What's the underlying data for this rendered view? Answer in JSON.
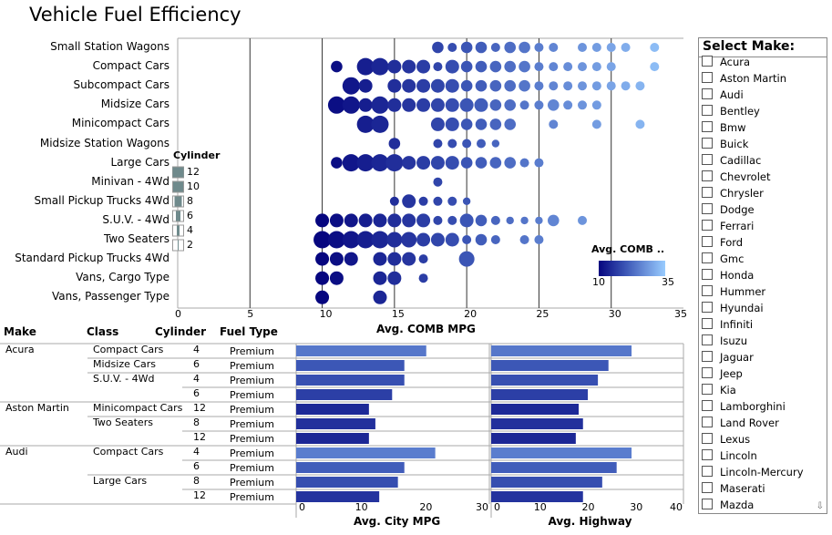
{
  "title": "Vehicle Fuel Efficiency",
  "colors": {
    "low": "#06067f",
    "mid": "#3b55b5",
    "high": "#99ccff",
    "grid": "#333333",
    "rule": "#aaaaaa"
  },
  "chart_data": [
    {
      "type": "scatter",
      "xlabel": "Avg. COMB MPG",
      "xlim": [
        0,
        35
      ],
      "xticks": [
        "0",
        "5",
        "10",
        "15",
        "20",
        "25",
        "30",
        "35"
      ],
      "grid": "vertical",
      "size_legend": {
        "title": "Cylinder",
        "entries": [
          "12",
          "10",
          "8",
          "6",
          "4",
          "2"
        ]
      },
      "color_legend": {
        "title": "Avg. COMB ..",
        "min": "10",
        "max": "35",
        "placement": "bottom-right"
      },
      "categories": [
        "Small Station Wagons",
        "Compact Cars",
        "Subcompact Cars",
        "Midsize Cars",
        "Minicompact Cars",
        "Midsize Station Wagons",
        "Large Cars",
        "Minivan - 4Wd",
        "Small Pickup Trucks 4Wd",
        "S.U.V. - 4Wd",
        "Two Seaters",
        "Standard Pickup Trucks 4Wd",
        "Vans, Cargo Type",
        "Vans, Passenger Type"
      ],
      "points_note_fields": [
        "mpg",
        "cylinder"
      ],
      "points": [
        [
          [
            18,
            6
          ],
          [
            19,
            4
          ],
          [
            20,
            6
          ],
          [
            21,
            6
          ],
          [
            22,
            4
          ],
          [
            23,
            6
          ],
          [
            24,
            6
          ],
          [
            25,
            4
          ],
          [
            26,
            4
          ],
          [
            28,
            4
          ],
          [
            29,
            4
          ],
          [
            30,
            4
          ],
          [
            31,
            4
          ],
          [
            33,
            4
          ]
        ],
        [
          [
            11,
            6
          ],
          [
            13,
            12
          ],
          [
            14,
            12
          ],
          [
            15,
            8
          ],
          [
            16,
            8
          ],
          [
            17,
            8
          ],
          [
            18,
            4
          ],
          [
            19,
            8
          ],
          [
            20,
            6
          ],
          [
            21,
            6
          ],
          [
            22,
            6
          ],
          [
            23,
            6
          ],
          [
            24,
            6
          ],
          [
            25,
            4
          ],
          [
            26,
            4
          ],
          [
            27,
            4
          ],
          [
            28,
            4
          ],
          [
            29,
            4
          ],
          [
            30,
            4
          ],
          [
            33,
            4
          ]
        ],
        [
          [
            12,
            12
          ],
          [
            13,
            8
          ],
          [
            15,
            8
          ],
          [
            16,
            8
          ],
          [
            17,
            8
          ],
          [
            18,
            8
          ],
          [
            19,
            8
          ],
          [
            20,
            6
          ],
          [
            21,
            6
          ],
          [
            22,
            6
          ],
          [
            23,
            6
          ],
          [
            24,
            6
          ],
          [
            25,
            4
          ],
          [
            26,
            4
          ],
          [
            27,
            4
          ],
          [
            28,
            4
          ],
          [
            29,
            4
          ],
          [
            30,
            4
          ],
          [
            31,
            4
          ],
          [
            32,
            4
          ]
        ],
        [
          [
            11,
            12
          ],
          [
            12,
            12
          ],
          [
            13,
            8
          ],
          [
            14,
            12
          ],
          [
            15,
            8
          ],
          [
            16,
            8
          ],
          [
            17,
            8
          ],
          [
            18,
            8
          ],
          [
            19,
            8
          ],
          [
            20,
            8
          ],
          [
            21,
            8
          ],
          [
            22,
            6
          ],
          [
            23,
            6
          ],
          [
            24,
            4
          ],
          [
            25,
            4
          ],
          [
            26,
            6
          ],
          [
            27,
            4
          ],
          [
            28,
            4
          ],
          [
            29,
            4
          ]
        ],
        [
          [
            13,
            12
          ],
          [
            14,
            12
          ],
          [
            18,
            8
          ],
          [
            19,
            8
          ],
          [
            20,
            6
          ],
          [
            21,
            6
          ],
          [
            22,
            6
          ],
          [
            23,
            6
          ],
          [
            26,
            4
          ],
          [
            29,
            4
          ],
          [
            32,
            4
          ]
        ],
        [
          [
            15,
            6
          ],
          [
            18,
            4
          ],
          [
            19,
            4
          ],
          [
            20,
            4
          ],
          [
            21,
            4
          ],
          [
            22,
            2
          ]
        ],
        [
          [
            11,
            6
          ],
          [
            12,
            12
          ],
          [
            13,
            12
          ],
          [
            14,
            12
          ],
          [
            15,
            12
          ],
          [
            16,
            8
          ],
          [
            17,
            8
          ],
          [
            18,
            8
          ],
          [
            19,
            8
          ],
          [
            20,
            6
          ],
          [
            21,
            6
          ],
          [
            22,
            6
          ],
          [
            23,
            6
          ],
          [
            24,
            4
          ],
          [
            25,
            4
          ]
        ],
        [
          [
            18,
            4
          ]
        ],
        [
          [
            15,
            4
          ],
          [
            16,
            8
          ],
          [
            17,
            4
          ],
          [
            18,
            4
          ],
          [
            19,
            4
          ],
          [
            20,
            2
          ]
        ],
        [
          [
            10,
            8
          ],
          [
            11,
            8
          ],
          [
            12,
            8
          ],
          [
            13,
            8
          ],
          [
            14,
            8
          ],
          [
            15,
            8
          ],
          [
            16,
            8
          ],
          [
            17,
            8
          ],
          [
            18,
            4
          ],
          [
            19,
            4
          ],
          [
            20,
            8
          ],
          [
            21,
            6
          ],
          [
            22,
            4
          ],
          [
            23,
            2
          ],
          [
            24,
            2
          ],
          [
            25,
            2
          ],
          [
            26,
            6
          ],
          [
            28,
            4
          ]
        ],
        [
          [
            10,
            12
          ],
          [
            11,
            12
          ],
          [
            12,
            12
          ],
          [
            13,
            12
          ],
          [
            14,
            12
          ],
          [
            15,
            10
          ],
          [
            16,
            10
          ],
          [
            17,
            8
          ],
          [
            18,
            8
          ],
          [
            19,
            8
          ],
          [
            20,
            4
          ],
          [
            21,
            6
          ],
          [
            22,
            4
          ],
          [
            24,
            4
          ],
          [
            25,
            4
          ]
        ],
        [
          [
            10,
            8
          ],
          [
            11,
            8
          ],
          [
            12,
            8
          ],
          [
            14,
            8
          ],
          [
            15,
            8
          ],
          [
            16,
            8
          ],
          [
            17,
            4
          ],
          [
            20,
            10
          ]
        ],
        [
          [
            10,
            8
          ],
          [
            11,
            8
          ],
          [
            14,
            8
          ],
          [
            15,
            8
          ],
          [
            17,
            4
          ]
        ],
        [
          [
            10,
            8
          ],
          [
            14,
            8
          ]
        ]
      ]
    },
    {
      "type": "bar",
      "xlabel": "Avg. City MPG",
      "xlim": [
        0,
        30
      ],
      "xticks": [
        "0",
        "10",
        "20",
        "30"
      ],
      "values": [
        20.2,
        16.8,
        16.8,
        14.9,
        11.3,
        12.3,
        11.3,
        21.6,
        16.8,
        15.8,
        12.9
      ]
    },
    {
      "type": "bar",
      "xlabel": "Avg. Highway",
      "xlim": [
        0,
        40
      ],
      "xticks": [
        "0",
        "10",
        "20",
        "30",
        "40"
      ],
      "values": [
        29.2,
        24.4,
        22.2,
        20.1,
        18.2,
        19.1,
        17.6,
        29.2,
        26.1,
        23.1,
        19.1
      ]
    }
  ],
  "table": {
    "headers": [
      "Make",
      "Class",
      "Cylinder",
      "Fuel Type"
    ],
    "rows": [
      [
        "Acura",
        "Compact Cars",
        "4",
        "Premium"
      ],
      [
        "",
        "Midsize Cars",
        "6",
        "Premium"
      ],
      [
        "",
        "S.U.V. - 4Wd",
        "4",
        "Premium"
      ],
      [
        "",
        "",
        "6",
        "Premium"
      ],
      [
        "Aston Martin",
        "Minicompact Cars",
        "12",
        "Premium"
      ],
      [
        "",
        "Two Seaters",
        "8",
        "Premium"
      ],
      [
        "",
        "",
        "12",
        "Premium"
      ],
      [
        "Audi",
        "Compact Cars",
        "4",
        "Premium"
      ],
      [
        "",
        "",
        "6",
        "Premium"
      ],
      [
        "",
        "Large Cars",
        "8",
        "Premium"
      ],
      [
        "",
        "",
        "12",
        "Premium"
      ]
    ]
  },
  "sidebar": {
    "title": "Select Make:",
    "items": [
      "Acura",
      "Aston Martin",
      "Audi",
      "Bentley",
      "Bmw",
      "Buick",
      "Cadillac",
      "Chevrolet",
      "Chrysler",
      "Dodge",
      "Ferrari",
      "Ford",
      "Gmc",
      "Honda",
      "Hummer",
      "Hyundai",
      "Infiniti",
      "Isuzu",
      "Jaguar",
      "Jeep",
      "Kia",
      "Lamborghini",
      "Land Rover",
      "Lexus",
      "Lincoln",
      "Lincoln-Mercury",
      "Maserati",
      "Mazda"
    ],
    "scroll_icon": "scroll-down-arrow-icon"
  }
}
